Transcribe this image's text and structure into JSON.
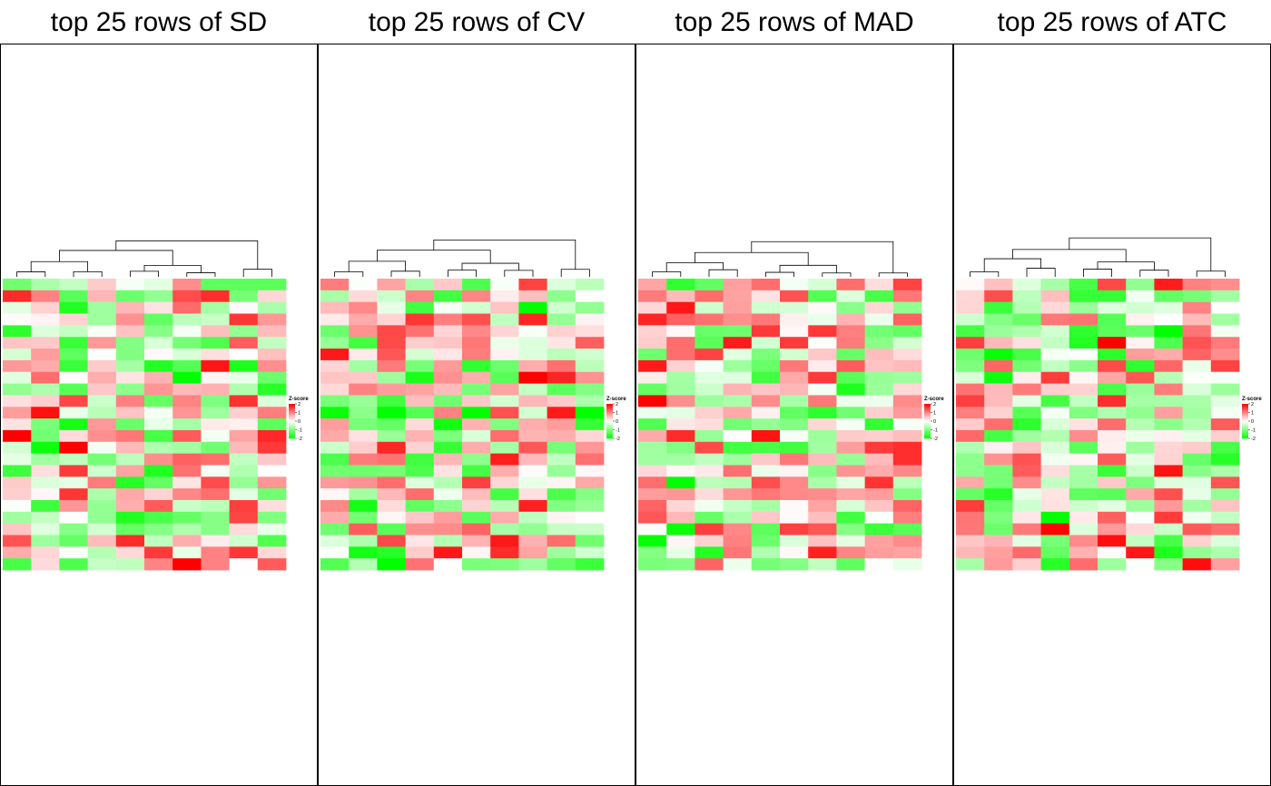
{
  "legend": {
    "title": "Z-score",
    "ticks": [
      "2",
      "1",
      "0",
      "-1",
      "-2"
    ],
    "high_color": "#ff0000",
    "mid_color": "#ffffff",
    "low_color": "#00ff00"
  },
  "chart_data": [
    {
      "type": "heatmap",
      "title": "top 25 rows of SD",
      "n_rows": 25,
      "n_cols": 10,
      "zlim": [
        -2,
        2
      ],
      "has_column_dendrogram": true,
      "seed": 11
    },
    {
      "type": "heatmap",
      "title": "top 25 rows of CV",
      "n_rows": 25,
      "n_cols": 10,
      "zlim": [
        -2,
        2
      ],
      "has_column_dendrogram": true,
      "seed": 23
    },
    {
      "type": "heatmap",
      "title": "top 25 rows of MAD",
      "n_rows": 25,
      "n_cols": 10,
      "zlim": [
        -2,
        2
      ],
      "has_column_dendrogram": true,
      "seed": 37
    },
    {
      "type": "heatmap",
      "title": "top 25 rows of ATC",
      "n_rows": 25,
      "n_cols": 10,
      "zlim": [
        -2,
        2
      ],
      "has_column_dendrogram": true,
      "seed": 51
    }
  ]
}
